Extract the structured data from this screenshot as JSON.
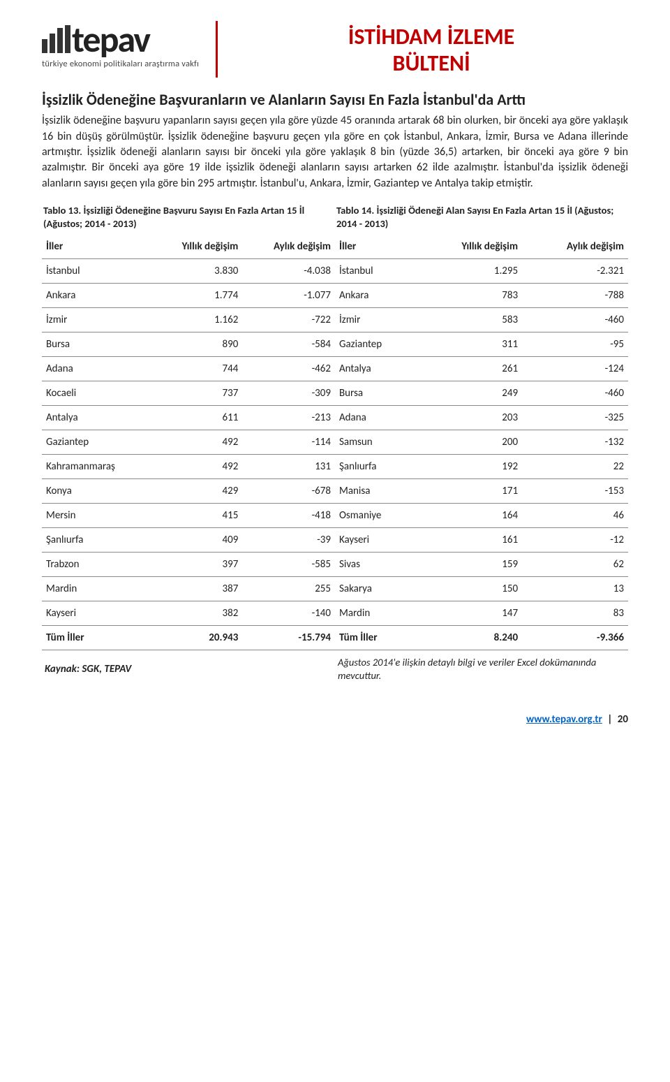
{
  "header": {
    "logo_text": "tepav",
    "logo_sub": "türkiye ekonomi politikaları araştırma vakfı",
    "title_line1": "İSTİHDAM İZLEME",
    "title_line2": "BÜLTENİ",
    "title_color": "#c00000",
    "logo_bar_heights": [
      20,
      28,
      36,
      40
    ]
  },
  "section_title": "İşsizlik Ödeneğine Başvuranların ve Alanların Sayısı En Fazla İstanbul'da Arttı",
  "body_text": "İşsizlik ödeneğine başvuru yapanların sayısı geçen yıla göre yüzde 45 oranında artarak 68 bin olurken, bir önceki aya göre yaklaşık 16 bin düşüş görülmüştür. İşsizlik ödeneğine başvuru geçen yıla göre en çok İstanbul, Ankara, İzmir, Bursa ve Adana illerinde artmıştır. İşsizlik ödeneği alanların sayısı bir önceki yıla göre yaklaşık 8 bin (yüzde 36,5) artarken, bir önceki aya göre 9 bin azalmıştır. Bir önceki aya göre 19 ilde işsizlik ödeneği alanların sayısı artarken 62 ilde azalmıştır. İstanbul'da işsizlik ödeneği alanların sayısı geçen yıla göre bin 295 artmıştır. İstanbul'u, Ankara, İzmir, Gaziantep ve Antalya takip etmiştir.",
  "table13": {
    "caption": "Tablo 13. İşsizliği Ödeneğine Başvuru Sayısı En Fazla Artan 15 İl (Ağustos; 2014 - 2013)",
    "columns": [
      "İller",
      "Yıllık değişim",
      "Aylık değişim"
    ],
    "rows": [
      [
        "İstanbul",
        "3.830",
        "-4.038"
      ],
      [
        "Ankara",
        "1.774",
        "-1.077"
      ],
      [
        "İzmir",
        "1.162",
        "-722"
      ],
      [
        "Bursa",
        "890",
        "-584"
      ],
      [
        "Adana",
        "744",
        "-462"
      ],
      [
        "Kocaeli",
        "737",
        "-309"
      ],
      [
        "Antalya",
        "611",
        "-213"
      ],
      [
        "Gaziantep",
        "492",
        "-114"
      ],
      [
        "Kahramanmaraş",
        "492",
        "131"
      ],
      [
        "Konya",
        "429",
        "-678"
      ],
      [
        "Mersin",
        "415",
        "-418"
      ],
      [
        "Şanlıurfa",
        "409",
        "-39"
      ],
      [
        "Trabzon",
        "397",
        "-585"
      ],
      [
        "Mardin",
        "387",
        "255"
      ],
      [
        "Kayseri",
        "382",
        "-140"
      ],
      [
        "Tüm İller",
        "20.943",
        "-15.794"
      ]
    ]
  },
  "table14": {
    "caption": "Tablo 14. İşsizliği Ödeneği Alan Sayısı En Fazla Artan 15 İl (Ağustos; 2014 - 2013)",
    "columns": [
      "İller",
      "Yıllık değişim",
      "Aylık değişim"
    ],
    "rows": [
      [
        "İstanbul",
        "1.295",
        "-2.321"
      ],
      [
        "Ankara",
        "783",
        "-788"
      ],
      [
        "İzmir",
        "583",
        "-460"
      ],
      [
        "Gaziantep",
        "311",
        "-95"
      ],
      [
        "Antalya",
        "261",
        "-124"
      ],
      [
        "Bursa",
        "249",
        "-460"
      ],
      [
        "Adana",
        "203",
        "-325"
      ],
      [
        "Samsun",
        "200",
        "-132"
      ],
      [
        "Şanlıurfa",
        "192",
        "22"
      ],
      [
        "Manisa",
        "171",
        "-153"
      ],
      [
        "Osmaniye",
        "164",
        "46"
      ],
      [
        "Kayseri",
        "161",
        "-12"
      ],
      [
        "Sivas",
        "159",
        "62"
      ],
      [
        "Sakarya",
        "150",
        "13"
      ],
      [
        "Mardin",
        "147",
        "83"
      ],
      [
        "Tüm İller",
        "8.240",
        "-9.366"
      ]
    ]
  },
  "source": "Kaynak: SGK, TEPAV",
  "footnote": "Ağustos 2014'e ilişkin detaylı bilgi ve veriler Excel dokümanında mevcuttur.",
  "footer": {
    "url": "www.tepav.org.tr",
    "page": "20"
  }
}
